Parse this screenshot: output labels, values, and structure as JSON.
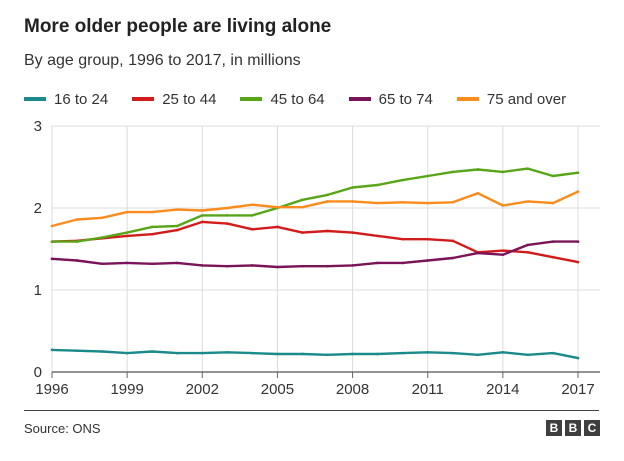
{
  "header": {
    "title": "More older people are living alone",
    "subtitle": "By age group, 1996 to 2017, in millions"
  },
  "footer": {
    "source": "Source: ONS",
    "logo": [
      "B",
      "B",
      "C"
    ]
  },
  "chart_data": {
    "type": "line",
    "title": "More older people are living alone",
    "subtitle": "By age group, 1996 to 2017, in millions",
    "xlabel": "",
    "ylabel": "",
    "x": [
      1996,
      1997,
      1998,
      1999,
      2000,
      2001,
      2002,
      2003,
      2004,
      2005,
      2006,
      2007,
      2008,
      2009,
      2010,
      2011,
      2012,
      2013,
      2014,
      2015,
      2016,
      2017
    ],
    "xlim": [
      1996,
      2017
    ],
    "ylim": [
      0,
      3
    ],
    "x_ticks": [
      "1996",
      "1999",
      "2002",
      "2005",
      "2008",
      "2011",
      "2014",
      "2017"
    ],
    "y_ticks": [
      "0",
      "1",
      "2",
      "3"
    ],
    "grid": true,
    "legend_position": "top",
    "series": [
      {
        "name": "16 to 24",
        "color": "#1a8a8a",
        "values": [
          0.27,
          0.26,
          0.25,
          0.23,
          0.25,
          0.23,
          0.23,
          0.24,
          0.23,
          0.22,
          0.22,
          0.21,
          0.22,
          0.22,
          0.23,
          0.24,
          0.23,
          0.21,
          0.24,
          0.21,
          0.23,
          0.17
        ]
      },
      {
        "name": "25 to 44",
        "color": "#d21c1c",
        "values": [
          1.59,
          1.6,
          1.63,
          1.66,
          1.68,
          1.73,
          1.83,
          1.81,
          1.74,
          1.77,
          1.7,
          1.72,
          1.7,
          1.66,
          1.62,
          1.62,
          1.6,
          1.46,
          1.48,
          1.46,
          1.4,
          1.34
        ]
      },
      {
        "name": "45 to 64",
        "color": "#58a618",
        "values": [
          1.59,
          1.59,
          1.64,
          1.7,
          1.77,
          1.78,
          1.91,
          1.91,
          1.91,
          2.0,
          2.1,
          2.16,
          2.25,
          2.28,
          2.34,
          2.39,
          2.44,
          2.47,
          2.44,
          2.48,
          2.39,
          2.43
        ]
      },
      {
        "name": "65 to 74",
        "color": "#7a1357",
        "values": [
          1.38,
          1.36,
          1.32,
          1.33,
          1.32,
          1.33,
          1.3,
          1.29,
          1.3,
          1.28,
          1.29,
          1.29,
          1.3,
          1.33,
          1.33,
          1.36,
          1.39,
          1.45,
          1.43,
          1.55,
          1.59,
          1.59
        ]
      },
      {
        "name": "75 and over",
        "color": "#fa8c1e",
        "values": [
          1.78,
          1.86,
          1.88,
          1.95,
          1.95,
          1.98,
          1.97,
          2.0,
          2.04,
          2.01,
          2.01,
          2.08,
          2.08,
          2.06,
          2.07,
          2.06,
          2.07,
          2.18,
          2.03,
          2.08,
          2.06,
          2.2
        ]
      }
    ]
  }
}
